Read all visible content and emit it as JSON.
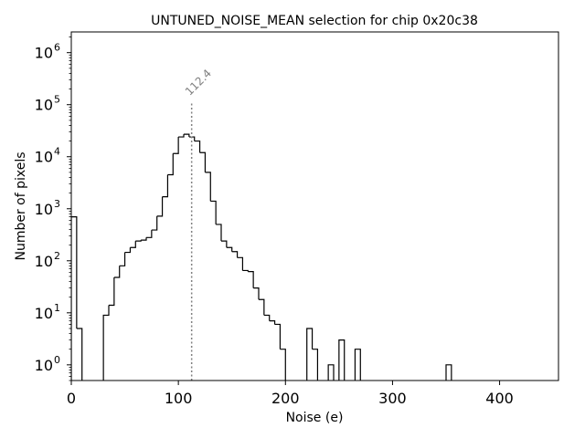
{
  "chart_data": {
    "type": "histogram",
    "title": "UNTUNED_NOISE_MEAN selection for chip 0x20c38",
    "xlabel": "Noise (e)",
    "ylabel": "Number of pixels",
    "xlim": [
      0,
      455
    ],
    "ylim": [
      0.5,
      2500000
    ],
    "yscale": "log",
    "grid": false,
    "xticks": [
      0,
      100,
      200,
      300,
      400
    ],
    "xtick_labels": [
      "0",
      "100",
      "200",
      "300",
      "400"
    ],
    "yticks": [
      1,
      10,
      100,
      1000,
      10000,
      100000,
      1000000
    ],
    "ytick_labels": [
      "10",
      "10",
      "10",
      "10",
      "10",
      "10",
      "10"
    ],
    "ytick_exponents": [
      "0",
      "1",
      "2",
      "3",
      "4",
      "5",
      "6"
    ],
    "bin_width": 5,
    "bin_start": 0,
    "counts": [
      700,
      5,
      0,
      0,
      0,
      0,
      9,
      14,
      48,
      80,
      145,
      180,
      240,
      250,
      280,
      390,
      720,
      1700,
      4500,
      11500,
      24000,
      27000,
      24000,
      20000,
      12000,
      5000,
      1400,
      500,
      240,
      180,
      150,
      115,
      65,
      62,
      30,
      18,
      9,
      7,
      6,
      2,
      0,
      0,
      0,
      0,
      5,
      2,
      0,
      0,
      1,
      0,
      3,
      0,
      0,
      2,
      0,
      0,
      0,
      0,
      0,
      0,
      0,
      0,
      0,
      0,
      0,
      0,
      0,
      0,
      0,
      0,
      1,
      0,
      0,
      0,
      0,
      0,
      0,
      0,
      0,
      0,
      0,
      0,
      0,
      0,
      0,
      0,
      0,
      0,
      0,
      0,
      0
    ],
    "mean_line": {
      "x": 112.4,
      "label": "112.4",
      "y_top": 115000,
      "color": "#808080"
    },
    "line_color": "#000000"
  }
}
